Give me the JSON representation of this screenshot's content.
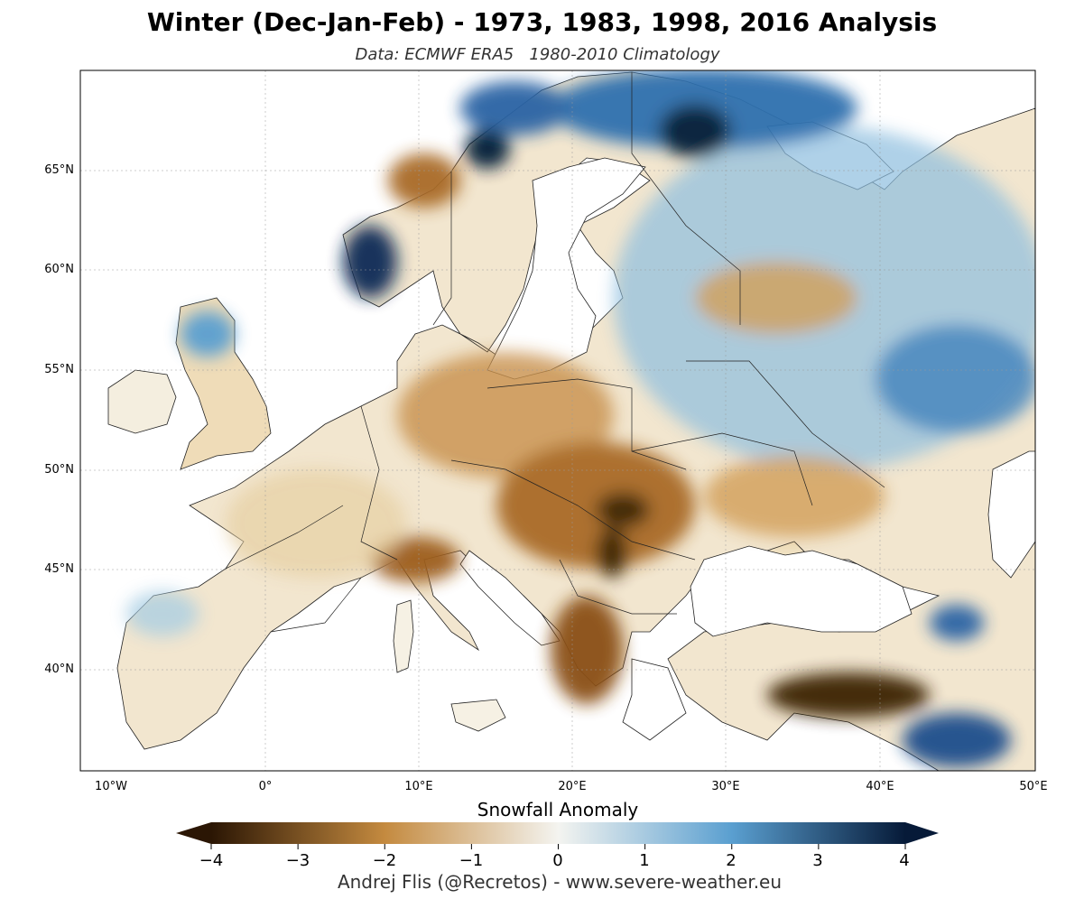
{
  "title": "Winter (Dec-Jan-Feb) - 1973, 1983, 1998, 2016 Analysis",
  "subtitle": "Data: ECMWF ERA5   1980-2010 Climatology",
  "latitude_labels": [
    "65°N",
    "60°N",
    "55°N",
    "50°N",
    "45°N",
    "40°N"
  ],
  "longitude_labels": [
    "10°W",
    "0°",
    "10°E",
    "20°E",
    "30°E",
    "40°E",
    "50°E"
  ],
  "colorbar": {
    "label": "Snowfall Anomaly",
    "ticks": [
      "−4",
      "−3",
      "−2",
      "−1",
      "0",
      "1",
      "2",
      "3",
      "4"
    ],
    "range": [
      -4,
      4
    ],
    "extend": "both",
    "colormap": "brown-to-blue diverging",
    "colors": {
      "low": "#2b1604",
      "mid_low": "#c48a3f",
      "zero": "#f4f4f0",
      "mid_high": "#5a9fd0",
      "high": "#061a38"
    }
  },
  "map": {
    "region": "Europe",
    "extent_lon": [
      -12,
      50
    ],
    "extent_lat": [
      35,
      70
    ],
    "land_color": "#f6f4ee",
    "sea_color": "#ffffff",
    "border_color": "#222222"
  },
  "credit": "Andrej Flis (@Recretos) - www.severe-weather.eu"
}
